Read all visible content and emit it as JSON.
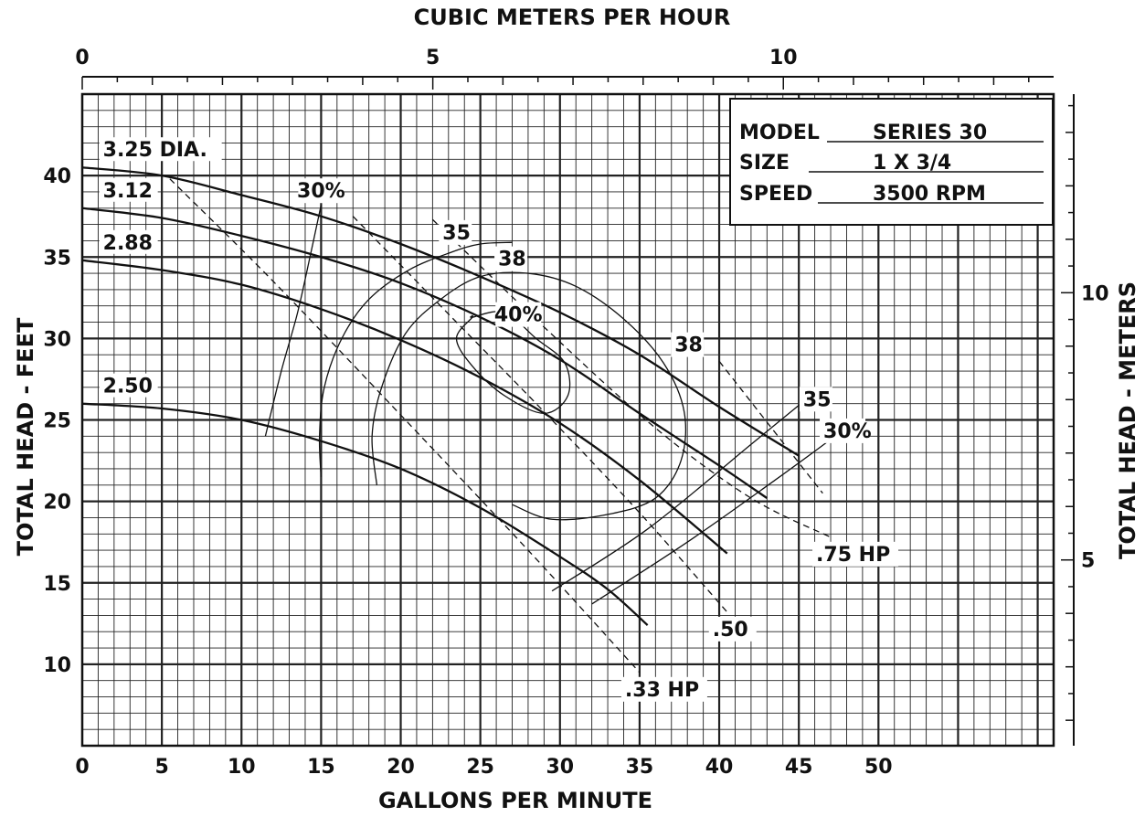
{
  "chart_data": {
    "type": "line",
    "title": "",
    "xlabel": "GALLONS PER MINUTE",
    "ylabel": "TOTAL HEAD - FEET",
    "x2label": "CUBIC METERS PER HOUR",
    "y2label": "TOTAL HEAD - METERS",
    "xlim": [
      0,
      61
    ],
    "ylim": [
      5,
      45
    ],
    "grid": true,
    "x_ticks": [
      {
        "value": 0,
        "label": "0"
      },
      {
        "value": 5,
        "label": "5"
      },
      {
        "value": 10,
        "label": "10"
      },
      {
        "value": 15,
        "label": "15"
      },
      {
        "value": 20,
        "label": "20"
      },
      {
        "value": 25,
        "label": "25"
      },
      {
        "value": 30,
        "label": "30"
      },
      {
        "value": 35,
        "label": "35"
      },
      {
        "value": 40,
        "label": "40"
      },
      {
        "value": 45,
        "label": "45"
      },
      {
        "value": 50,
        "label": "50"
      }
    ],
    "y_ticks": [
      {
        "value": 10,
        "label": "10"
      },
      {
        "value": 15,
        "label": "15"
      },
      {
        "value": 20,
        "label": "20"
      },
      {
        "value": 25,
        "label": "25"
      },
      {
        "value": 30,
        "label": "30"
      },
      {
        "value": 35,
        "label": "35"
      },
      {
        "value": 40,
        "label": "40"
      }
    ],
    "x2_ticks": [
      {
        "value": 0,
        "label": "0"
      },
      {
        "value": 5,
        "label": "5"
      },
      {
        "value": 10,
        "label": "10"
      }
    ],
    "y2_ticks": [
      {
        "value": 5,
        "label": "5"
      },
      {
        "value": 10,
        "label": "10"
      }
    ],
    "series": [
      {
        "name": "3.25 DIA.",
        "x": [
          0,
          5,
          10,
          15,
          20,
          25,
          30,
          35,
          40,
          45
        ],
        "y": [
          40.5,
          40,
          38.8,
          37.5,
          35.8,
          33.8,
          31.6,
          29,
          25.8,
          22.8
        ]
      },
      {
        "name": "3.12",
        "x": [
          0,
          5,
          10,
          15,
          20,
          25,
          30,
          35,
          40,
          43
        ],
        "y": [
          38,
          37.4,
          36.3,
          35,
          33.4,
          31.3,
          28.7,
          25.4,
          22.2,
          20.2
        ]
      },
      {
        "name": "2.88",
        "x": [
          0,
          5,
          10,
          15,
          20,
          25,
          30,
          35,
          40.5
        ],
        "y": [
          34.8,
          34.2,
          33.3,
          31.8,
          29.9,
          27.6,
          24.8,
          21.3,
          16.8
        ]
      },
      {
        "name": "2.50",
        "x": [
          0,
          5,
          10,
          15,
          20,
          25,
          30,
          33,
          35.5
        ],
        "y": [
          26,
          25.7,
          25,
          23.7,
          22,
          19.6,
          16.6,
          14.6,
          12.4
        ]
      }
    ],
    "efficiency_contours": [
      {
        "label": "30%",
        "x": [
          11.5,
          12.5,
          13.5,
          14.3,
          15
        ],
        "y": [
          24,
          28,
          31.5,
          35,
          38.2
        ]
      },
      {
        "label": "35",
        "x": [
          15,
          14.9,
          15.2,
          16.3,
          18,
          20.5,
          23.2,
          25,
          27
        ],
        "y": [
          21.5,
          24,
          27,
          30,
          32.4,
          34.2,
          35.3,
          35.8,
          35.9
        ]
      },
      {
        "label": "38",
        "x": [
          18.5,
          18.2,
          18.8,
          20.3,
          22.5,
          25,
          28,
          31,
          34,
          36.5,
          37.8,
          37.6,
          36,
          33,
          29.5,
          27
        ],
        "y": [
          21,
          24,
          27,
          30.3,
          32.4,
          33.8,
          34,
          33.2,
          31.2,
          28.5,
          25.5,
          22.5,
          20.2,
          19.2,
          18.9,
          19.8
        ]
      },
      {
        "label": "40%",
        "x": [
          24.5,
          23.5,
          24.5,
          26.5,
          29,
          30.5,
          30.3,
          28.5,
          26.5,
          24.5
        ],
        "y": [
          31.3,
          30,
          28.3,
          26.5,
          25.4,
          26.5,
          28.5,
          30,
          31.6,
          31.3
        ]
      },
      {
        "label": "35",
        "x": [
          29.5,
          35.5,
          42,
          45.5
        ],
        "y": [
          14.5,
          18.3,
          23.5,
          26.3
        ]
      },
      {
        "label": "30%",
        "x": [
          32,
          38,
          43.5,
          47
        ],
        "y": [
          13.7,
          17.5,
          21.3,
          23.8
        ]
      }
    ],
    "hp_lines": [
      {
        "label": ".33 HP",
        "x": [
          5.5,
          12,
          20,
          28,
          35
        ],
        "y": [
          39.8,
          33.5,
          25.3,
          17,
          9.5
        ]
      },
      {
        "label": ".50",
        "x": [
          17,
          23,
          29,
          35,
          40.5
        ],
        "y": [
          37.5,
          31.5,
          25.5,
          19.3,
          13.2
        ]
      },
      {
        "label": ".75 HP",
        "x": [
          22,
          29,
          36,
          42,
          47
        ],
        "y": [
          37.3,
          30.7,
          24.5,
          20.2,
          17.8
        ]
      },
      {
        "label": "",
        "x": [
          40,
          46.5
        ],
        "y": [
          28.6,
          20.5
        ]
      }
    ],
    "info_box": {
      "rows": [
        {
          "key": "MODEL",
          "value": "SERIES 30"
        },
        {
          "key": "SIZE",
          "value": "1 X 3/4"
        },
        {
          "key": "SPEED",
          "value": "3500 RPM"
        }
      ]
    },
    "colors": {
      "ink": "#111111",
      "grid": "#222222",
      "background": "#ffffff"
    }
  }
}
